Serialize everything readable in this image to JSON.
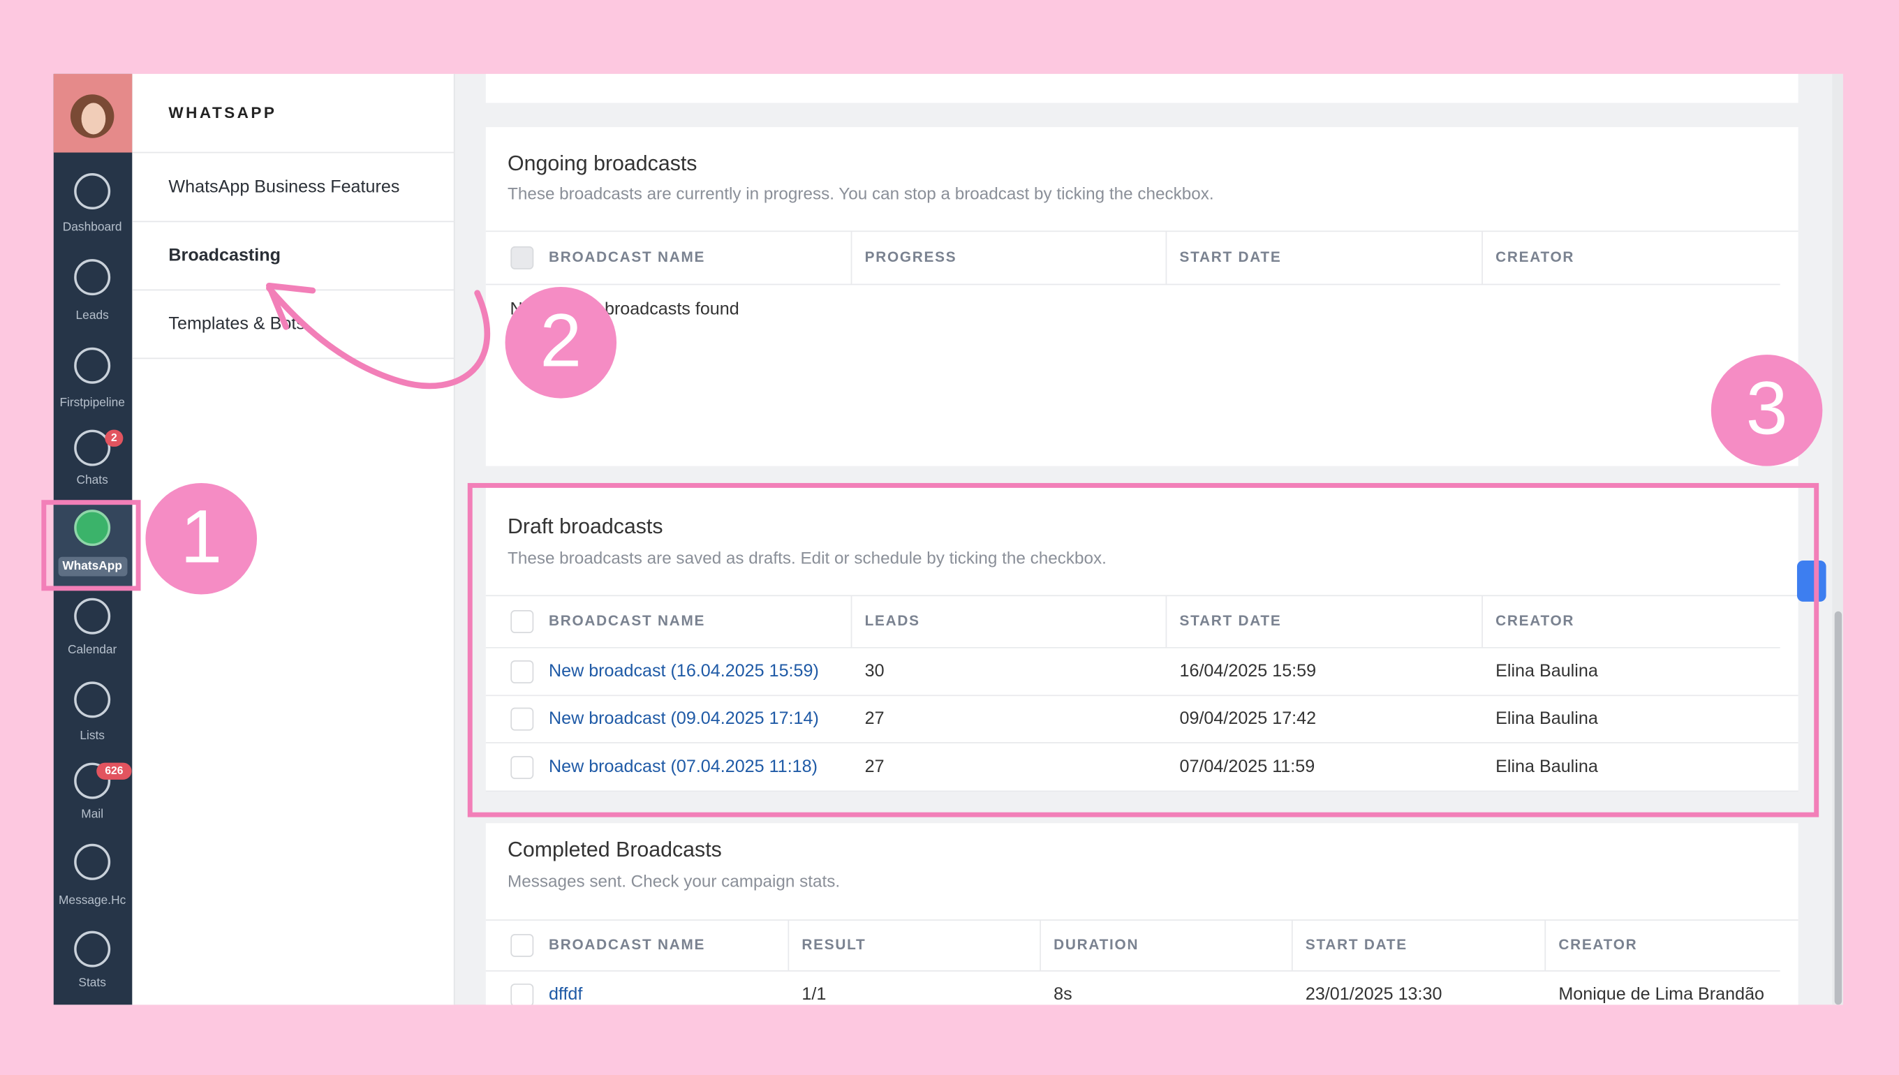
{
  "sidebar": [
    {
      "label": "Dashboard"
    },
    {
      "label": "Leads"
    },
    {
      "label": "Firstpipeline"
    },
    {
      "label": "Chats",
      "badge": "2"
    },
    {
      "label": "WhatsApp"
    },
    {
      "label": "Calendar"
    },
    {
      "label": "Lists"
    },
    {
      "label": "Mail",
      "badge": "626"
    },
    {
      "label": "Message.Hc"
    },
    {
      "label": "Stats"
    }
  ],
  "menu": {
    "title": "WHATSAPP",
    "items": [
      "WhatsApp Business Features",
      "Broadcasting",
      "Templates & Bots"
    ]
  },
  "sections": [
    {
      "title": "Ongoing broadcasts",
      "subtitle": "These broadcasts are currently in progress. You can stop a broadcast by ticking the checkbox.",
      "columns": [
        "BROADCAST NAME",
        "PROGRESS",
        "START DATE",
        "CREATOR"
      ],
      "rows": [],
      "empty": "No ongoing broadcasts found"
    },
    {
      "title": "Draft broadcasts",
      "subtitle": "These broadcasts are saved as drafts. Edit or schedule by ticking the checkbox.",
      "columns": [
        "BROADCAST NAME",
        "LEADS",
        "START DATE",
        "CREATOR"
      ],
      "rows": [
        [
          "New broadcast (16.04.2025 15:59)",
          "30",
          "16/04/2025 15:59",
          "Elina Baulina"
        ],
        [
          "New broadcast (09.04.2025 17:14)",
          "27",
          "09/04/2025 17:42",
          "Elina Baulina"
        ],
        [
          "New broadcast (07.04.2025 11:18)",
          "27",
          "07/04/2025 11:59",
          "Elina Baulina"
        ]
      ]
    },
    {
      "title": "Completed Broadcasts",
      "subtitle": "Messages sent. Check your campaign stats.",
      "columns": [
        "BROADCAST NAME",
        "RESULT",
        "DURATION",
        "START DATE",
        "CREATOR"
      ],
      "rows": [
        [
          "dffdf",
          "1/1",
          "8s",
          "23/01/2025 13:30",
          "Monique de Lima Brandão"
        ]
      ]
    }
  ],
  "annotations": [
    "1",
    "2",
    "3"
  ]
}
